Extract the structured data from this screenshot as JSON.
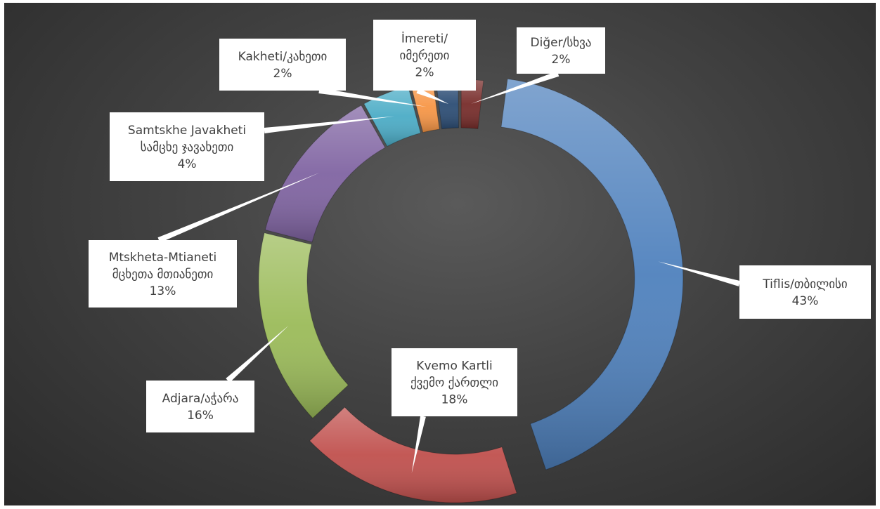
{
  "chart_data": {
    "type": "doughnut",
    "title": "",
    "slices": [
      {
        "name": "Tiflis/თბილისი",
        "lines": [
          "Tiflis/თბილისი"
        ],
        "value": 43,
        "label": "43%",
        "color": "#4f81bd"
      },
      {
        "name": "Kvemo Kartli ქვემო ქართლი",
        "lines": [
          "Kvemo Kartli",
          "ქვემო ქართლი"
        ],
        "value": 18,
        "label": "18%",
        "color": "#c0504d"
      },
      {
        "name": "Adjara/აჭარა",
        "lines": [
          "Adjara/აჭარა"
        ],
        "value": 16,
        "label": "16%",
        "color": "#9bbb59"
      },
      {
        "name": "Mtskheta-Mtianeti მცხეთა მთიანეთი",
        "lines": [
          "Mtskheta-Mtianeti",
          "მცხეთა მთიანეთი"
        ],
        "value": 13,
        "label": "13%",
        "color": "#8064a2"
      },
      {
        "name": "Samtskhe Javakheti სამცხე ჯავახეთი",
        "lines": [
          "Samtskhe Javakheti",
          "სამცხე ჯავახეთი"
        ],
        "value": 4,
        "label": "4%",
        "color": "#4bacc6"
      },
      {
        "name": "Kakheti/კახეთი",
        "lines": [
          "Kakheti/კახეთი"
        ],
        "value": 2,
        "label": "2%",
        "color": "#f79646"
      },
      {
        "name": "İmereti/ იმერეთი",
        "lines": [
          "İmereti/",
          "იმერეთი"
        ],
        "value": 2,
        "label": "2%",
        "color": "#2c4d75"
      },
      {
        "name": "Diğer/სხვა",
        "lines": [
          "Diğer/სხვა"
        ],
        "value": 2,
        "label": "2%",
        "color": "#772c2a"
      }
    ]
  }
}
